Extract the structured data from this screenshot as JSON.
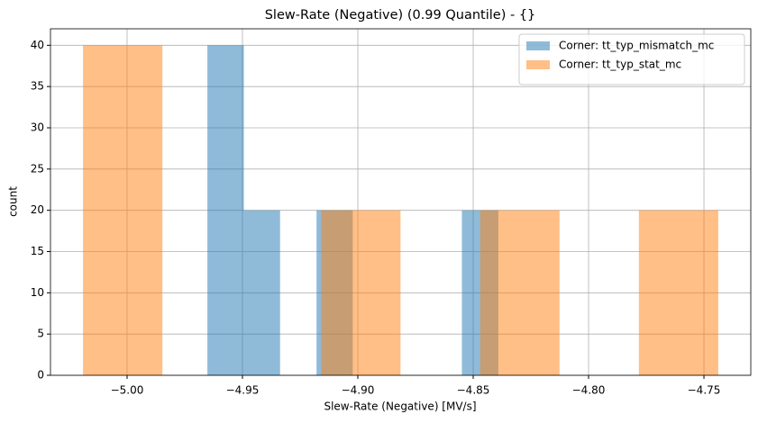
{
  "chart_data": {
    "type": "histogram",
    "title": "Slew-Rate (Negative) (0.99 Quantile) - {}",
    "x_label": "Slew-Rate (Negative) [MV/s]",
    "y_label": "count",
    "xlim": [
      -5.0332,
      -4.7297
    ],
    "ylim": [
      0,
      42
    ],
    "xticks": [
      {
        "value": -5.0,
        "label": "−5.00"
      },
      {
        "value": -4.95,
        "label": "−4.95"
      },
      {
        "value": -4.9,
        "label": "−4.90"
      },
      {
        "value": -4.85,
        "label": "−4.85"
      },
      {
        "value": -4.8,
        "label": "−4.80"
      },
      {
        "value": -4.75,
        "label": "−4.75"
      }
    ],
    "yticks": [
      0,
      5,
      10,
      15,
      20,
      25,
      30,
      35,
      40
    ],
    "grid": true,
    "legend": "upper right",
    "opacity": 0.5,
    "series": [
      {
        "name": "Corner: tt_typ_mismatch_mc",
        "color": "#1f77b4",
        "bins": [
          -4.9652,
          -4.9494,
          -4.9337,
          -4.9179,
          -4.9022,
          -4.8864,
          -4.8706,
          -4.8549,
          -4.8391
        ],
        "values": [
          40,
          20,
          0,
          20,
          0,
          0,
          0,
          20
        ]
      },
      {
        "name": "Corner: tt_typ_stat_mc",
        "color": "#ff7f0e",
        "bins": [
          -5.0191,
          -4.9847,
          -4.9503,
          -4.9159,
          -4.8815,
          -4.847,
          -4.8126,
          -4.7782,
          -4.7438
        ],
        "values": [
          40,
          0,
          0,
          20,
          0,
          20,
          0,
          20
        ]
      }
    ]
  }
}
